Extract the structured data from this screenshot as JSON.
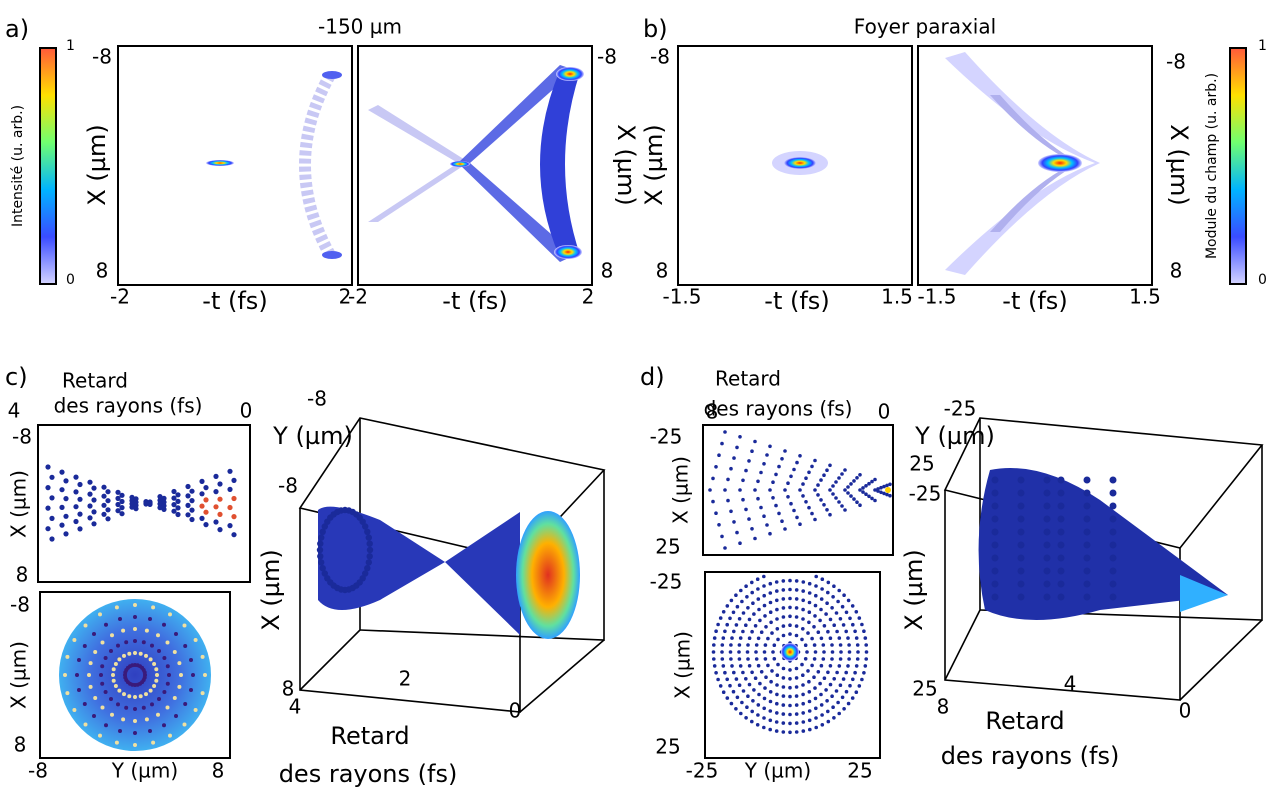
{
  "panels": {
    "a": {
      "label": "a)",
      "title": "-150 µm",
      "colorbar": {
        "label": "Intensité (u. arb.)",
        "max": "1",
        "min": "0"
      },
      "left": {
        "y_label": "X (µm)",
        "y_ticks": [
          "-8",
          "8"
        ],
        "x_label": "-t (fs)",
        "x_ticks": [
          "-2",
          "2"
        ]
      },
      "right": {
        "y_label": "X (µm)",
        "y_ticks": [
          "-8",
          "8"
        ],
        "x_label": "-t (fs)",
        "x_ticks": [
          "-2",
          "2"
        ]
      }
    },
    "b": {
      "label": "b)",
      "title": "Foyer paraxial",
      "colorbar": {
        "label": "Module du champ (u. arb.)",
        "max": "1",
        "min": "0"
      },
      "left": {
        "y_label": "X (µm)",
        "y_ticks": [
          "-8",
          "8"
        ],
        "x_label": "-t (fs)",
        "x_ticks": [
          "-1.5",
          "1.5"
        ]
      },
      "right": {
        "y_label": "X (µm)",
        "y_ticks": [
          "-8",
          "8"
        ],
        "x_label": "-t (fs)",
        "x_ticks": [
          "-1.5",
          "1.5"
        ]
      }
    },
    "c": {
      "label": "c)",
      "inset_top": {
        "title": [
          "Retard",
          "des rayons (fs)"
        ],
        "x_ticks": [
          "4",
          "0"
        ],
        "y_label": "X (µm)",
        "y_ticks": [
          "-8",
          "8"
        ]
      },
      "inset_bottom": {
        "y_label": "X (µm)",
        "y_ticks": [
          "-8",
          "8"
        ],
        "x_label": "Y (µm)",
        "x_ticks": [
          "-8",
          "8"
        ]
      },
      "view_3d": {
        "y_label": "Y (µm)",
        "y_ticks": [
          "-8"
        ],
        "x_label": "X (µm)",
        "x_ticks": [
          "-8",
          "8"
        ],
        "delay_label": [
          "Retard",
          "des rayons (fs)"
        ],
        "delay_ticks": [
          "4",
          "2",
          "0"
        ]
      }
    },
    "d": {
      "label": "d)",
      "inset_top": {
        "title": [
          "Retard",
          "des rayons (fs)"
        ],
        "x_ticks": [
          "8",
          "0"
        ],
        "y_label": "X (µm)",
        "y_ticks": [
          "-25",
          "25"
        ]
      },
      "inset_bottom": {
        "y_label": "X (µm)",
        "y_ticks": [
          "-25",
          "25"
        ],
        "x_label": "Y (µm)",
        "x_ticks": [
          "-25",
          "25"
        ]
      },
      "view_3d": {
        "y_label": "Y (µm)",
        "y_ticks": [
          "-25",
          "25"
        ],
        "x_label": "X (µm)",
        "x_ticks": [
          "-25",
          "25"
        ],
        "delay_label": [
          "Retard",
          "des rayons (fs)"
        ],
        "delay_ticks": [
          "8",
          "4",
          "0"
        ]
      }
    }
  }
}
